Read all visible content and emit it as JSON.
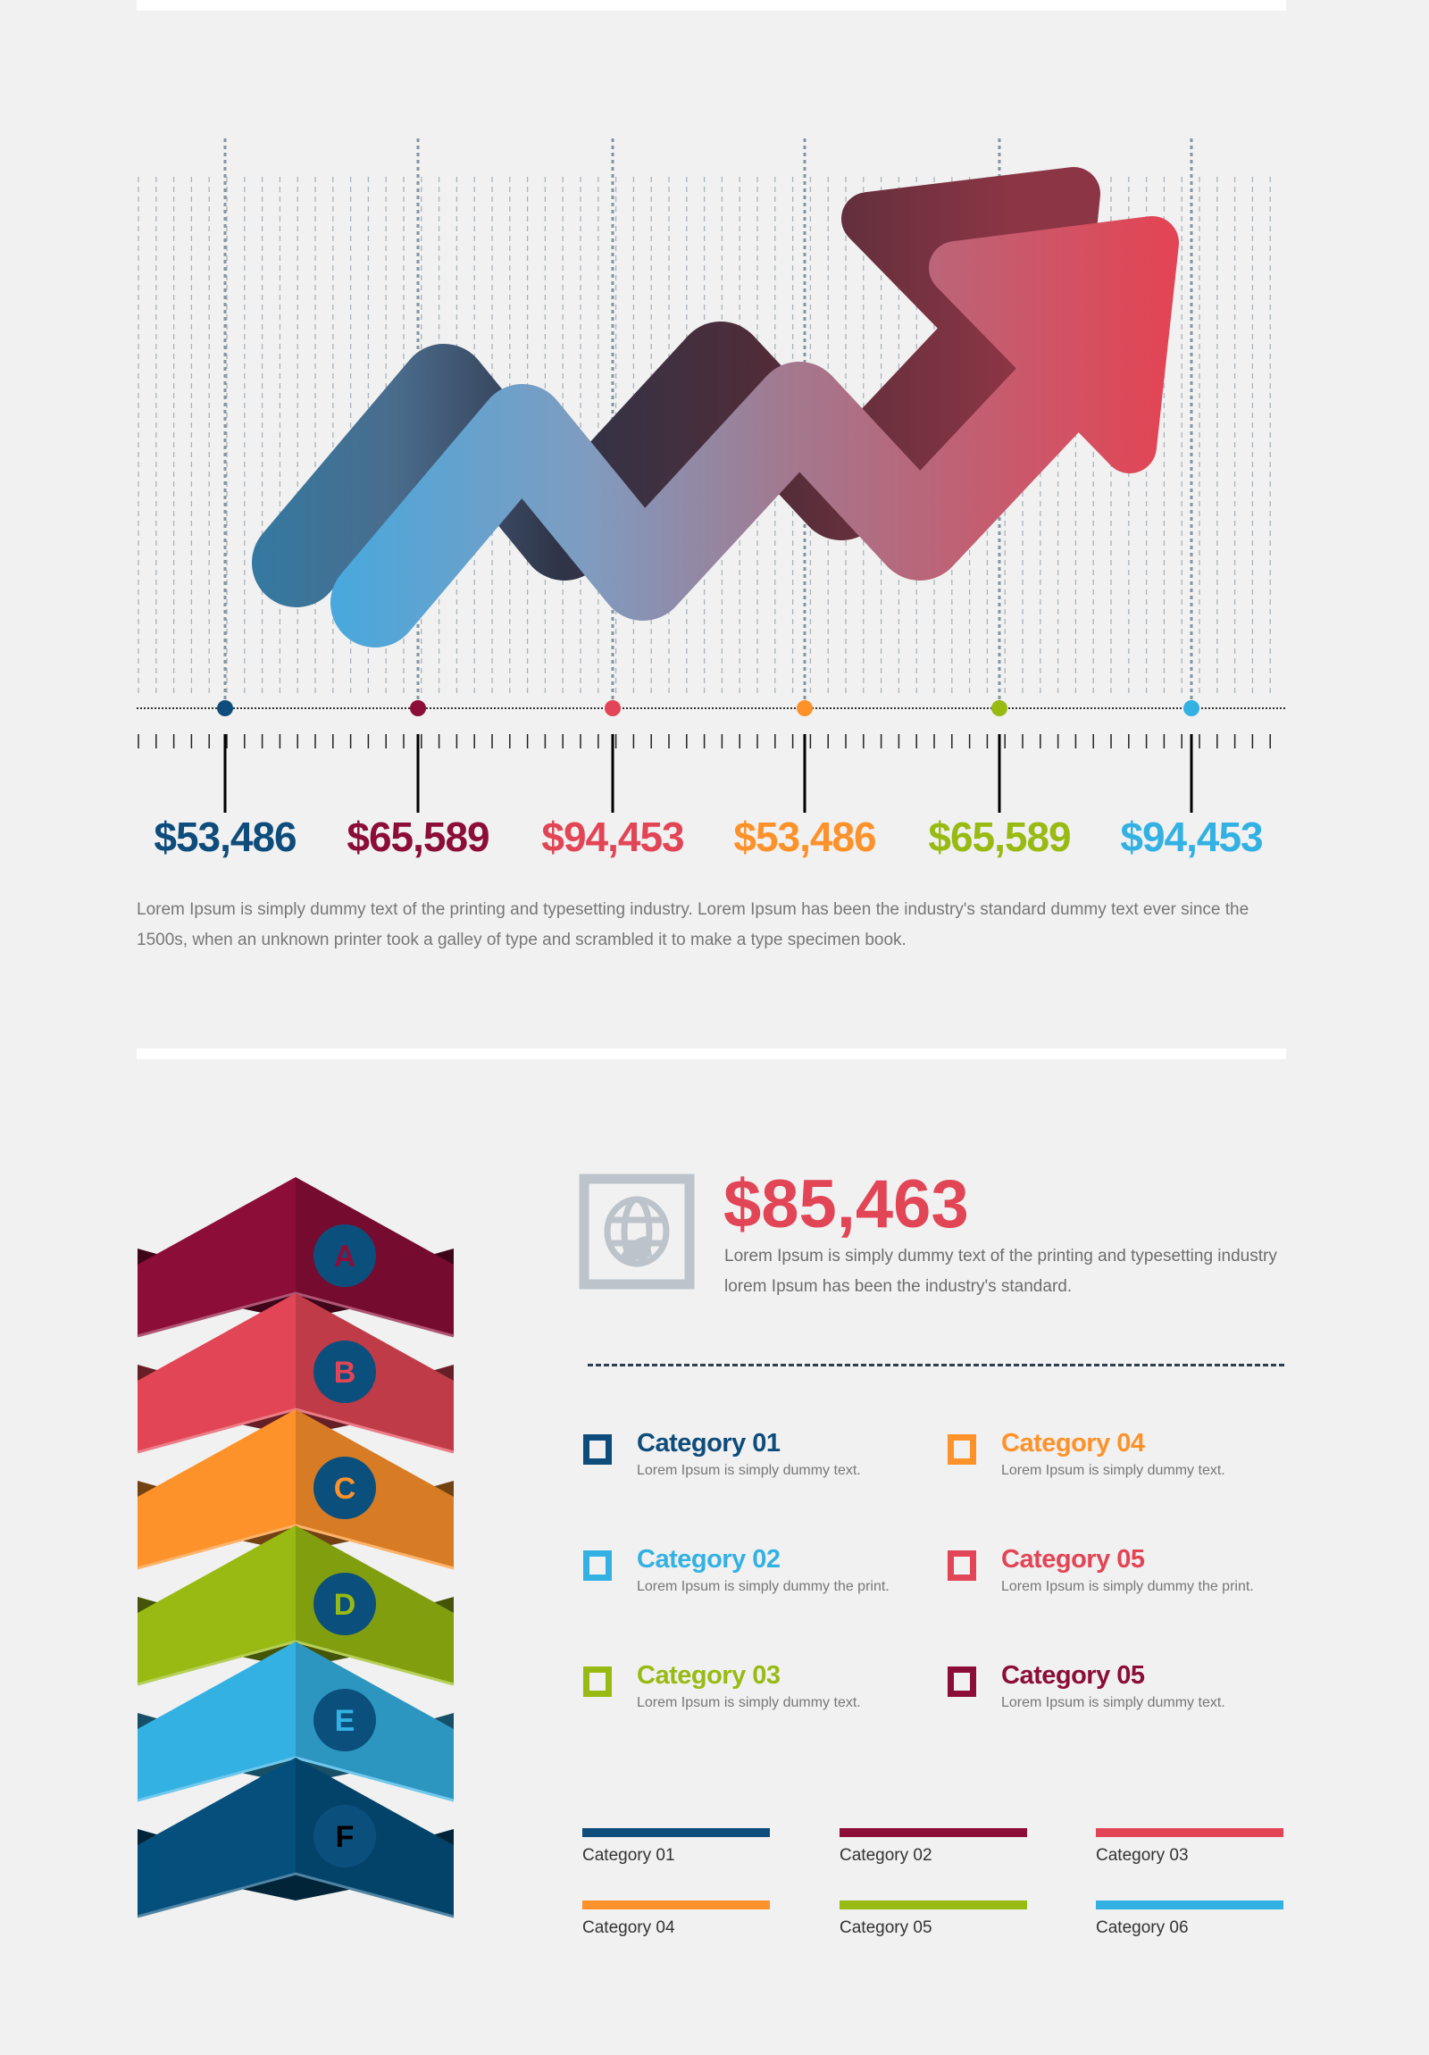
{
  "values": [
    {
      "text": "$53,486",
      "color": "#0e4c7b"
    },
    {
      "text": "$65,589",
      "color": "#8b0d38"
    },
    {
      "text": "$94,453",
      "color": "#e24555"
    },
    {
      "text": "$53,486",
      "color": "#fd922b"
    },
    {
      "text": "$65,589",
      "color": "#98ba12"
    },
    {
      "text": "$94,453",
      "color": "#34b1e3"
    }
  ],
  "description": "Lorem Ipsum is simply dummy text of the printing and typesetting industry. Lorem Ipsum has been the industry's standard dummy text ever since the 1500s, when an unknown printer took a galley of type and scrambled it to make a type specimen book.",
  "steps": [
    {
      "letter": "A",
      "color": "#8b0d38"
    },
    {
      "letter": "B",
      "color": "#e24555"
    },
    {
      "letter": "C",
      "color": "#fd922b"
    },
    {
      "letter": "D",
      "color": "#98ba12"
    },
    {
      "letter": "E",
      "color": "#34b1e3"
    },
    {
      "letter": "F",
      "color": "#054f7c"
    }
  ],
  "highlight": {
    "icon": "globe-icon",
    "amount": "$85,463",
    "text": "Lorem Ipsum is simply dummy text of the printing and typesetting industry lorem Ipsum has been the industry's standard."
  },
  "categories": [
    {
      "title": "Category 01",
      "desc": "Lorem Ipsum is simply dummy text.",
      "color": "#0e4c7b"
    },
    {
      "title": "Category 02",
      "desc": "Lorem Ipsum is simply dummy the print.",
      "color": "#34b1e3"
    },
    {
      "title": "Category 03",
      "desc": "Lorem Ipsum is simply dummy text.",
      "color": "#98ba12"
    },
    {
      "title": "Category 04",
      "desc": "Lorem Ipsum is simply dummy text.",
      "color": "#fd922b"
    },
    {
      "title": "Category 05",
      "desc": "Lorem Ipsum is simply dummy the print.",
      "color": "#e24555"
    },
    {
      "title": "Category 05",
      "desc": "Lorem Ipsum is simply dummy text.",
      "color": "#8b0d38"
    }
  ],
  "legend": [
    {
      "label": "Category 01",
      "color": "#0e4c7b"
    },
    {
      "label": "Category 02",
      "color": "#8b0d38"
    },
    {
      "label": "Category 03",
      "color": "#e24555"
    },
    {
      "label": "Category 04",
      "color": "#fd922b"
    },
    {
      "label": "Category 05",
      "color": "#98ba12"
    },
    {
      "label": "Category 06",
      "color": "#34b1e3"
    }
  ]
}
